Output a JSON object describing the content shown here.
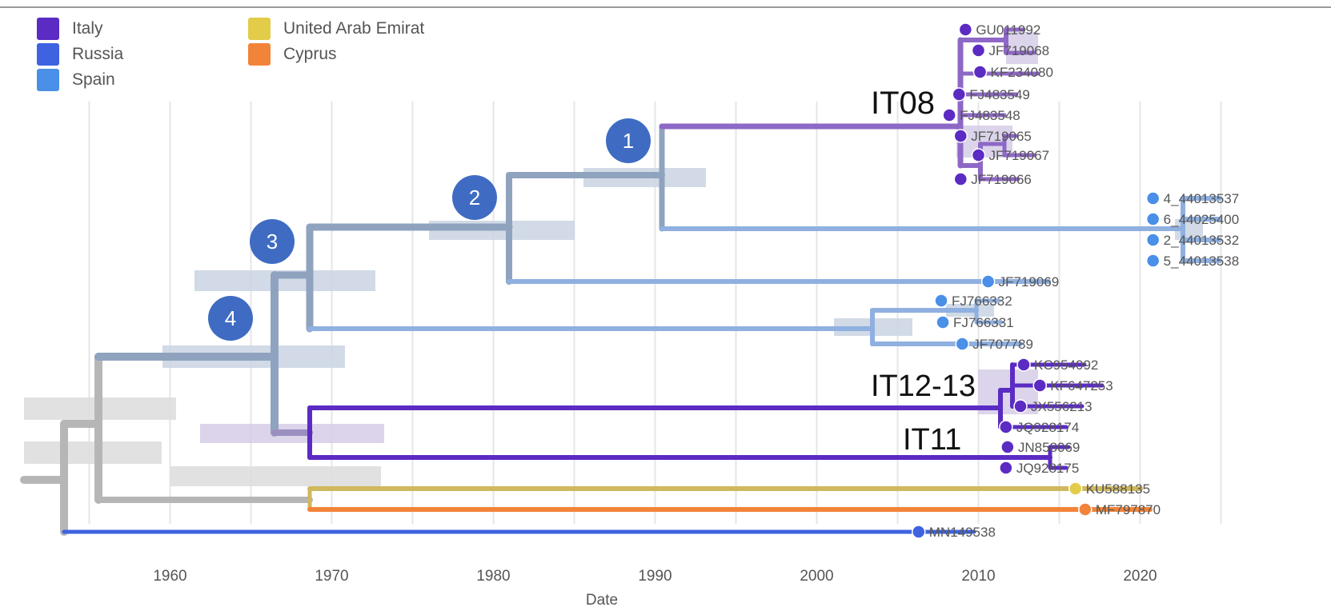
{
  "legend": {
    "items": [
      {
        "label": "Italy",
        "color": "#5b2bc4"
      },
      {
        "label": "Russia",
        "color": "#3f63e0"
      },
      {
        "label": "Spain",
        "color": "#4a8fe8"
      },
      {
        "label": "United Arab Emirat",
        "color": "#e3cc4a"
      },
      {
        "label": "Cyprus",
        "color": "#f2843a"
      }
    ]
  },
  "axis": {
    "label": "Date",
    "ticks": [
      "1960",
      "1970",
      "1980",
      "1990",
      "2000",
      "2010",
      "2020"
    ]
  },
  "tips": [
    {
      "label": "GU011992",
      "country": "Italy",
      "year": 2009.2
    },
    {
      "label": "JF719068",
      "country": "Italy",
      "year": 2010.0
    },
    {
      "label": "KF234080",
      "country": "Italy",
      "year": 2010.1
    },
    {
      "label": "FJ483549",
      "country": "Italy",
      "year": 2008.8
    },
    {
      "label": "FJ483548",
      "country": "Italy",
      "year": 2008.2
    },
    {
      "label": "JF719065",
      "country": "Italy",
      "year": 2008.9
    },
    {
      "label": "JF719067",
      "country": "Italy",
      "year": 2010.0
    },
    {
      "label": "JF719066",
      "country": "Italy",
      "year": 2008.9
    },
    {
      "label": "4_44013537",
      "country": "Spain",
      "year": 2020.8
    },
    {
      "label": "6_44025400",
      "country": "Spain",
      "year": 2020.8
    },
    {
      "label": "2_44013532",
      "country": "Spain",
      "year": 2020.8
    },
    {
      "label": "5_44013538",
      "country": "Spain",
      "year": 2020.8
    },
    {
      "label": "JF719069",
      "country": "Spain",
      "year": 2010.6
    },
    {
      "label": "FJ766332",
      "country": "Spain",
      "year": 2007.7
    },
    {
      "label": "FJ766331",
      "country": "Spain",
      "year": 2007.8
    },
    {
      "label": "JF707789",
      "country": "Spain",
      "year": 2009.0
    },
    {
      "label": "KC954092",
      "country": "Italy",
      "year": 2012.8
    },
    {
      "label": "KF647253",
      "country": "Italy",
      "year": 2013.8
    },
    {
      "label": "JX556213",
      "country": "Italy",
      "year": 2012.6
    },
    {
      "label": "JQ928174",
      "country": "Italy",
      "year": 2011.7
    },
    {
      "label": "JN858069",
      "country": "Italy",
      "year": 2011.8
    },
    {
      "label": "JQ928175",
      "country": "Italy",
      "year": 2011.7
    },
    {
      "label": "KU588135",
      "country": "United Arab Emirat",
      "year": 2016.0
    },
    {
      "label": "MF797870",
      "country": "Cyprus",
      "year": 2016.6
    },
    {
      "label": "MN149538",
      "country": "Russia",
      "year": 2006.3
    }
  ],
  "clade_labels": [
    "IT08",
    "IT12-13",
    "IT11"
  ],
  "node_markers": [
    "1",
    "2",
    "3",
    "4"
  ]
}
